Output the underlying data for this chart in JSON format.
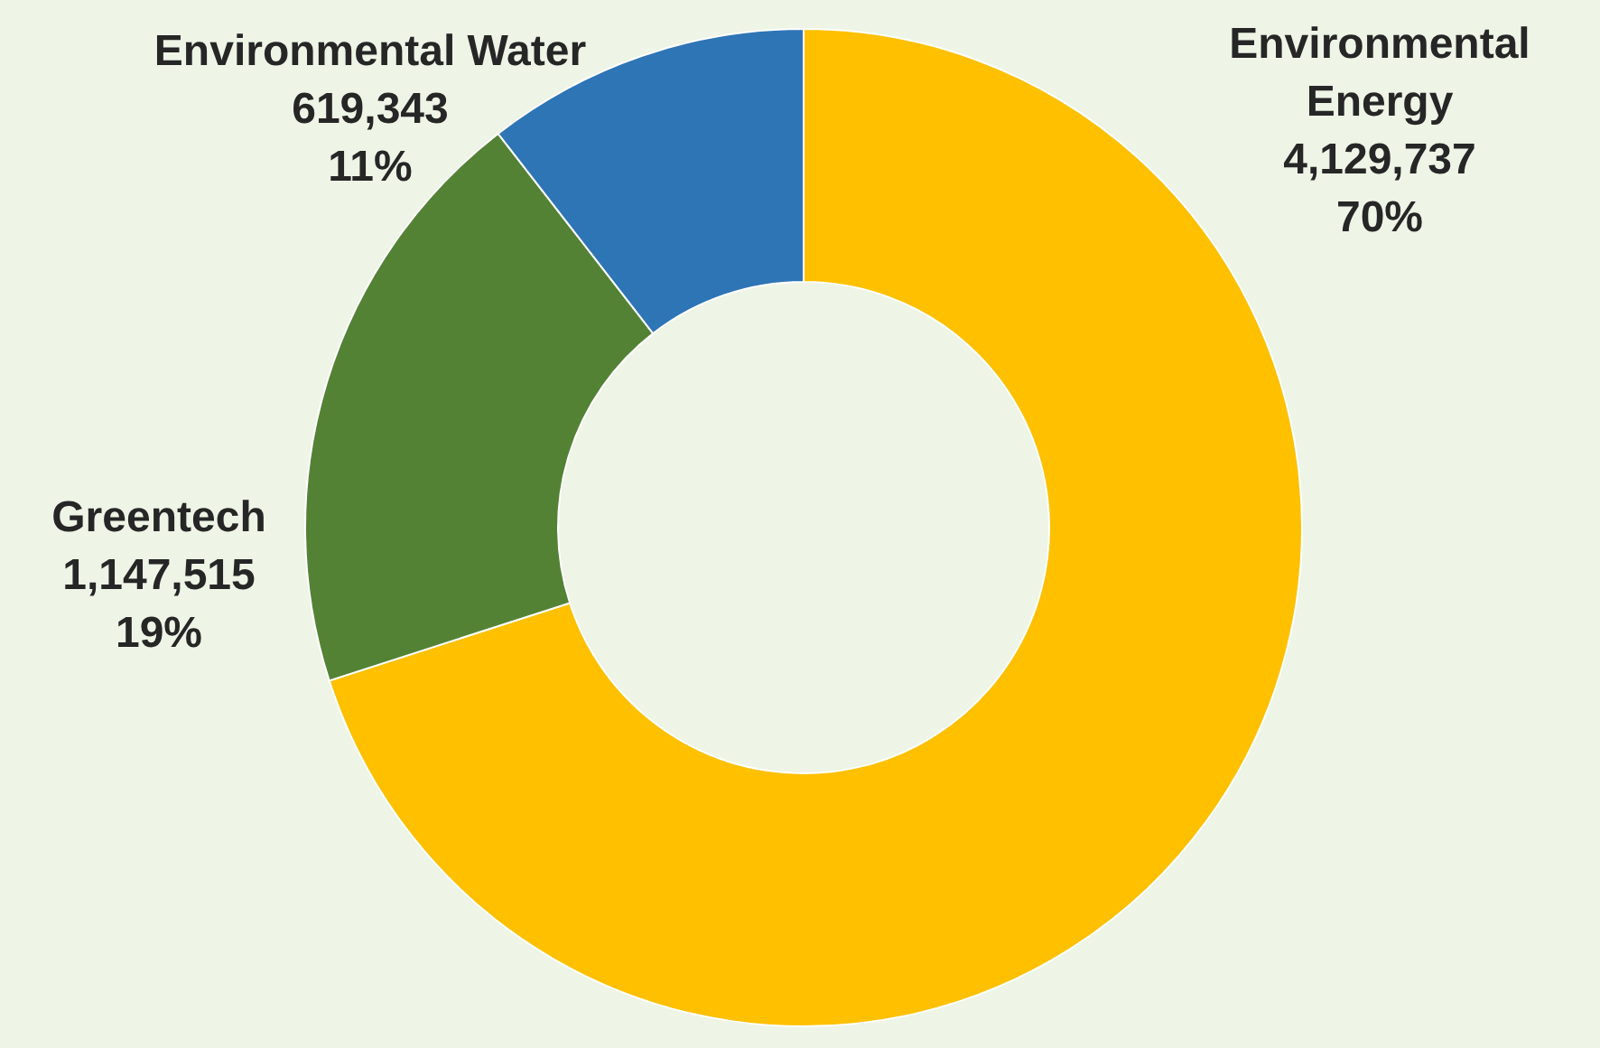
{
  "chart_data": {
    "type": "donut",
    "categories": [
      "Environmental Energy",
      "Greentech",
      "Environmental Water"
    ],
    "values": [
      4129737,
      1147515,
      619343
    ],
    "colors": [
      "#ffc000",
      "#548235",
      "#2e75b6"
    ],
    "value_labels": [
      "4,129,737\n70%",
      "1,147,515\n19%",
      "619,343\n11%"
    ]
  }
}
